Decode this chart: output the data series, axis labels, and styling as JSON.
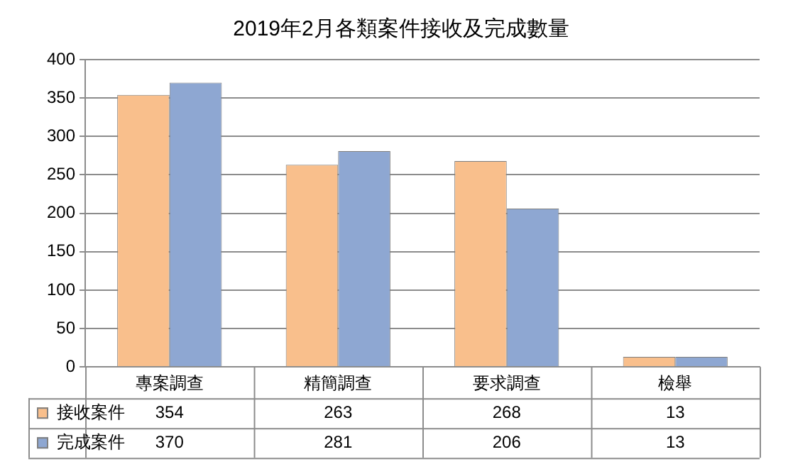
{
  "chart_data": {
    "type": "bar",
    "title": "2019年2月各類案件接收及完成數量",
    "categories": [
      "專案調查",
      "精簡調查",
      "要求調查",
      "檢舉"
    ],
    "series": [
      {
        "name": "接收案件",
        "color": "#f9bf8c",
        "values": [
          354,
          263,
          268,
          13
        ]
      },
      {
        "name": "完成案件",
        "color": "#8ea7d2",
        "values": [
          370,
          281,
          206,
          13
        ]
      }
    ],
    "ylim": [
      0,
      400
    ],
    "yticks": [
      0,
      50,
      100,
      150,
      200,
      250,
      300,
      350,
      400
    ],
    "grid": "y",
    "legend": "bottom",
    "data_labels": true
  }
}
